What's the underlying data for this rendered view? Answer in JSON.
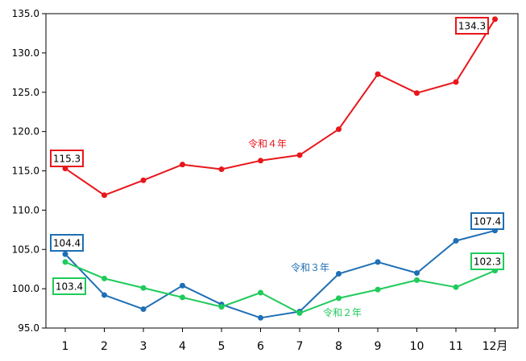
{
  "chart_data": {
    "type": "line",
    "categories": [
      "1",
      "2",
      "3",
      "4",
      "5",
      "6",
      "7",
      "8",
      "9",
      "10",
      "11",
      "12月"
    ],
    "ylim": [
      95.0,
      135.0
    ],
    "yticks": [
      "95.0",
      "100.0",
      "105.0",
      "110.0",
      "115.0",
      "120.0",
      "125.0",
      "130.0",
      "135.0"
    ],
    "grid": false,
    "series": [
      {
        "name": "令和４年",
        "color": "#e8161b",
        "values": [
          115.3,
          111.9,
          113.8,
          115.8,
          115.2,
          116.3,
          117.0,
          120.3,
          127.3,
          124.9,
          126.3,
          134.3
        ]
      },
      {
        "name": "令和３年",
        "color": "#1f6fb4",
        "values": [
          104.4,
          99.2,
          97.4,
          100.4,
          98.0,
          96.3,
          97.1,
          101.9,
          103.4,
          102.0,
          106.1,
          107.4
        ]
      },
      {
        "name": "令和２年",
        "color": "#1fcb5a",
        "values": [
          103.4,
          101.3,
          100.1,
          98.9,
          97.7,
          99.5,
          96.9,
          98.8,
          99.9,
          101.1,
          100.2,
          102.3
        ]
      }
    ],
    "callouts": [
      {
        "series": 0,
        "point": 0,
        "text": "115.3"
      },
      {
        "series": 0,
        "point": 11,
        "text": "134.3"
      },
      {
        "series": 1,
        "point": 0,
        "text": "104.4"
      },
      {
        "series": 1,
        "point": 11,
        "text": "107.4"
      },
      {
        "series": 2,
        "point": 0,
        "text": "103.4"
      },
      {
        "series": 2,
        "point": 11,
        "text": "102.3"
      }
    ]
  }
}
